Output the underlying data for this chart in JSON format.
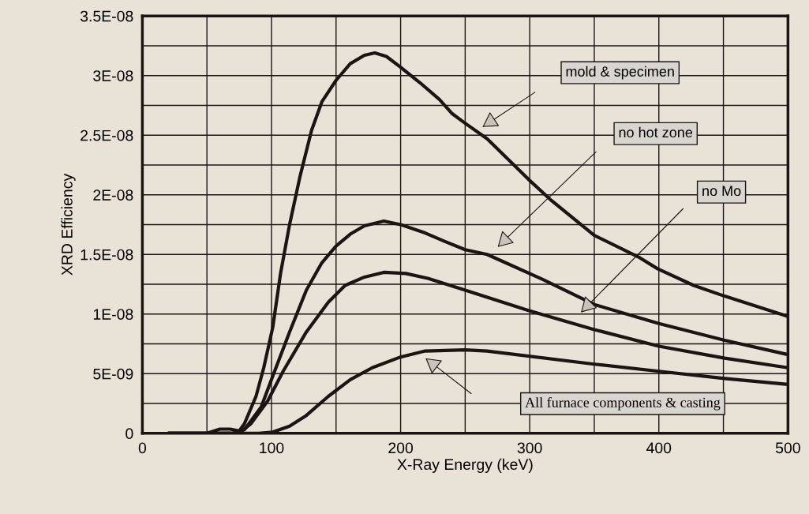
{
  "chart_data": {
    "type": "line",
    "xlabel": "X-Ray Energy (keV)",
    "ylabel": "XRD Efficiency",
    "xlim": [
      0,
      500
    ],
    "ylim": [
      0,
      3.5e-08
    ],
    "xticks": [
      0,
      {
        "value": 50,
        "label": null
      },
      100,
      {
        "value": 150,
        "label": null
      },
      200,
      {
        "value": 250,
        "label": null
      },
      300,
      {
        "value": 350,
        "label": null
      },
      400,
      {
        "value": 450,
        "label": null
      },
      500
    ],
    "yticks": [
      {
        "value": 0,
        "label": "0"
      },
      {
        "value": 2.5e-09,
        "label": null
      },
      {
        "value": 5e-09,
        "label": "5E-09"
      },
      {
        "value": 7.5e-09,
        "label": null
      },
      {
        "value": 1e-08,
        "label": "1E-08"
      },
      {
        "value": 1.25e-08,
        "label": null
      },
      {
        "value": 1.5e-08,
        "label": "1.5E-08"
      },
      {
        "value": 1.75e-08,
        "label": null
      },
      {
        "value": 2e-08,
        "label": "2E-08"
      },
      {
        "value": 2.25e-08,
        "label": null
      },
      {
        "value": 2.5e-08,
        "label": "2.5E-08"
      },
      {
        "value": 2.75e-08,
        "label": null
      },
      {
        "value": 3e-08,
        "label": "3E-08"
      },
      {
        "value": 3.25e-08,
        "label": null
      },
      {
        "value": 3.5e-08,
        "label": "3.5E-08"
      }
    ],
    "grid": true,
    "legend": false,
    "marker": "none",
    "line_style": "solid",
    "series": [
      {
        "color": "#1a1414",
        "x": [
          20,
          50,
          60,
          68,
          75,
          79,
          88,
          94,
          101,
          107,
          114,
          122,
          131,
          139,
          150,
          161,
          172,
          180,
          189,
          200,
          215,
          230,
          240,
          250,
          267,
          299,
          316,
          350,
          384,
          399,
          427,
          451,
          500
        ],
        "values": [
          0,
          0,
          3.5e-10,
          3.5e-10,
          2e-10,
          8e-10,
          3.1e-09,
          5.5e-09,
          8.9e-09,
          1.34e-08,
          1.75e-08,
          2.15e-08,
          2.54e-08,
          2.78e-08,
          2.96e-08,
          3.1e-08,
          3.17e-08,
          3.19e-08,
          3.16e-08,
          3.07e-08,
          2.94e-08,
          2.8e-08,
          2.68e-08,
          2.6e-08,
          2.47e-08,
          2.13e-08,
          1.96e-08,
          1.66e-08,
          1.48e-08,
          1.38e-08,
          1.24e-08,
          1.15e-08,
          9.8e-09
        ]
      },
      {
        "color": "#1a1414",
        "x": [
          20,
          70,
          79,
          92,
          101,
          114,
          127,
          139,
          150,
          161,
          172,
          187,
          200,
          219,
          234,
          250,
          267,
          310,
          350,
          400,
          451,
          500
        ],
        "values": [
          0,
          0,
          3e-10,
          2.2e-09,
          4.8e-09,
          8.5e-09,
          1.2e-08,
          1.43e-08,
          1.57e-08,
          1.67e-08,
          1.74e-08,
          1.78e-08,
          1.75e-08,
          1.68e-08,
          1.61e-08,
          1.54e-08,
          1.5e-08,
          1.29e-08,
          1.08e-08,
          9.2e-09,
          7.8e-09,
          6.6e-09
        ]
      },
      {
        "color": "#1a1414",
        "x": [
          20,
          75,
          84,
          97,
          109,
          127,
          144,
          157,
          172,
          187,
          204,
          221,
          250,
          299,
          350,
          400,
          451,
          500
        ],
        "values": [
          0,
          0,
          8e-10,
          2.7e-09,
          5.2e-09,
          8.5e-09,
          1.1e-08,
          1.24e-08,
          1.31e-08,
          1.35e-08,
          1.34e-08,
          1.3e-08,
          1.2e-08,
          1.03e-08,
          8.7e-09,
          7.3e-09,
          6.3e-09,
          5.5e-09
        ]
      },
      {
        "color": "#1a1414",
        "x": [
          20,
          90,
          101,
          114,
          127,
          144,
          161,
          178,
          200,
          219,
          250,
          267,
          350,
          400,
          451,
          500
        ],
        "values": [
          0,
          0,
          1e-10,
          6e-10,
          1.5e-09,
          3.1e-09,
          4.5e-09,
          5.5e-09,
          6.4e-09,
          6.9e-09,
          7e-09,
          6.9e-09,
          5.8e-09,
          5.2e-09,
          4.6e-09,
          4.1e-09
        ]
      }
    ],
    "annotations": [
      "mold & specimen",
      "no hot zone",
      "no Mo",
      "All furnace components & casting"
    ]
  }
}
